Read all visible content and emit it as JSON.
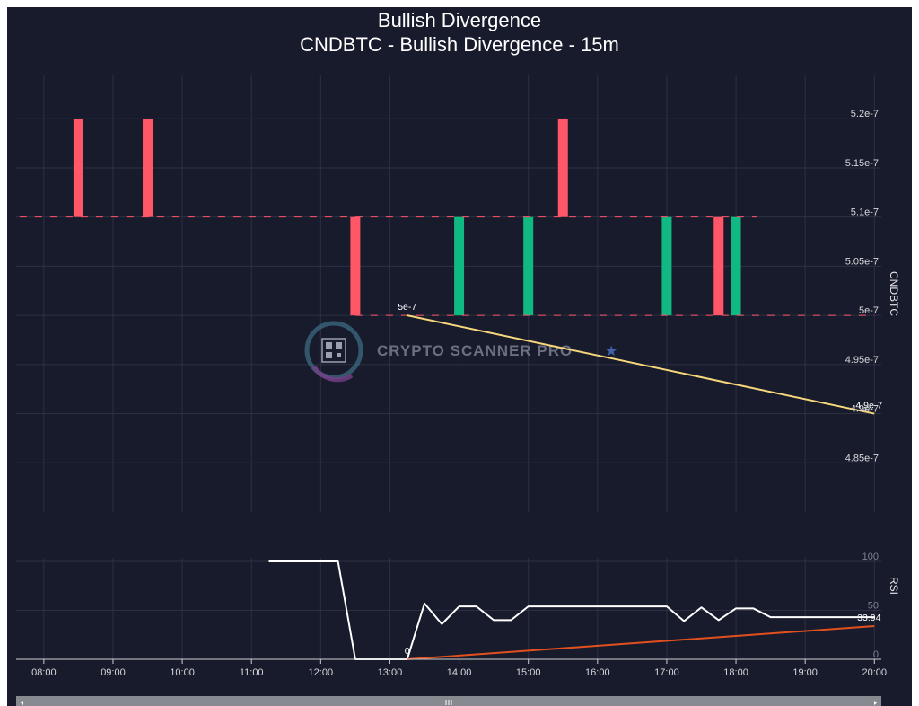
{
  "title": "Bullish Divergence",
  "subtitle": "CNDBTC - Bullish Divergence - 15m",
  "watermark": "CRYPTO SCANNER PRO",
  "colors": {
    "background": "#181b2c",
    "grid": "#2c3042",
    "up": "#10b981",
    "down": "#ff5668",
    "price_trend": "#f6d77a",
    "rsi_line": "#ffffff",
    "rsi_trend": "#e2501f",
    "scrollbar": "#888a92"
  },
  "chart_data": [
    {
      "type": "candlestick",
      "ylabel": "CNDBTC",
      "x_ticks": [
        "08:00",
        "09:00",
        "10:00",
        "11:00",
        "12:00",
        "13:00",
        "14:00",
        "15:00",
        "16:00",
        "17:00",
        "18:00",
        "19:00",
        "20:00"
      ],
      "y_ticks": [
        "4.85e-7",
        "4.9e-7",
        "4.95e-7",
        "5e-7",
        "5.05e-7",
        "5.1e-7",
        "5.15e-7",
        "5.2e-7"
      ],
      "y_tick_values": [
        4.85e-07,
        4.9e-07,
        4.95e-07,
        5e-07,
        5.05e-07,
        5.1e-07,
        5.15e-07,
        5.2e-07
      ],
      "ylim": [
        4.8e-07,
        5.245e-07
      ],
      "x_range_hours": [
        7.6,
        20.1
      ],
      "candles": [
        {
          "t": 8.5,
          "open": 5.2e-07,
          "close": 5.1e-07
        },
        {
          "t": 9.5,
          "open": 5.2e-07,
          "close": 5.1e-07
        },
        {
          "t": 12.5,
          "open": 5.1e-07,
          "close": 5e-07
        },
        {
          "t": 14.0,
          "open": 5e-07,
          "close": 5.1e-07
        },
        {
          "t": 15.0,
          "open": 5e-07,
          "close": 5.1e-07
        },
        {
          "t": 15.5,
          "open": 5.2e-07,
          "close": 5.1e-07
        },
        {
          "t": 17.0,
          "open": 5e-07,
          "close": 5.1e-07
        },
        {
          "t": 17.75,
          "open": 5.1e-07,
          "close": 5e-07
        },
        {
          "t": 18.0,
          "open": 5e-07,
          "close": 5.1e-07
        }
      ],
      "dashed_levels": [
        {
          "value": 5.1e-07,
          "from": 7.65,
          "to": 18.3
        },
        {
          "value": 5e-07,
          "from": 12.5,
          "to": 20.0
        }
      ],
      "trend_line": {
        "x": [
          13.25,
          20.0
        ],
        "y": [
          5e-07,
          4.9e-07
        ]
      },
      "annotations": [
        {
          "t": 13.25,
          "value": 5e-07,
          "text": "5e-7"
        },
        {
          "t": 20.0,
          "value": 4.9e-07,
          "text": "4.9e-7"
        }
      ]
    },
    {
      "type": "line",
      "ylabel": "RSI",
      "y_ticks": [
        "0",
        "50",
        "100"
      ],
      "y_tick_values": [
        0,
        50,
        100
      ],
      "ylim": [
        0,
        100
      ],
      "series": [
        {
          "x": [
            11.25,
            12.25,
            12.5,
            13.25,
            13.5,
            13.75,
            14.0,
            14.25,
            14.5,
            14.75,
            15.0,
            15.25,
            15.5,
            15.75,
            16.0,
            16.25,
            16.5,
            16.75,
            17.0,
            17.25,
            17.5,
            17.75,
            18.0,
            18.25,
            18.5,
            18.75,
            19.0,
            19.25,
            19.5,
            19.75,
            20.0
          ],
          "y": [
            100,
            100,
            0,
            0,
            57,
            36,
            54,
            54,
            40,
            40,
            54,
            54,
            54,
            54,
            54,
            54,
            54,
            54,
            54,
            39,
            53,
            40,
            52,
            52,
            43,
            43,
            43,
            43,
            43,
            43,
            43
          ]
        }
      ],
      "trend_line": {
        "x": [
          13.25,
          20.0
        ],
        "y": [
          0,
          33.94
        ]
      },
      "annotations": [
        {
          "t": 13.25,
          "value": 0,
          "text": "0"
        },
        {
          "t": 20.0,
          "value": 33.94,
          "text": "33.94"
        }
      ]
    }
  ]
}
